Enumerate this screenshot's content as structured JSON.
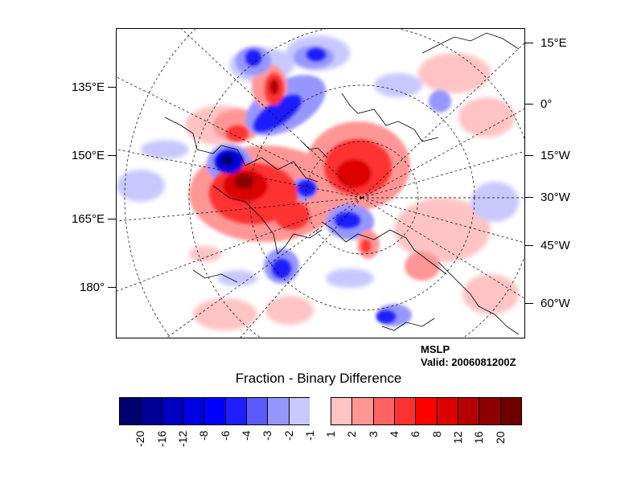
{
  "map": {
    "projection": "polar stereographic, north",
    "left_axis_labels": [
      "135°E",
      "150°E",
      "165°E",
      "180°"
    ],
    "right_axis_labels": [
      "15°E",
      "0°",
      "15°W",
      "30°W",
      "45°W",
      "60°W"
    ]
  },
  "annotations": {
    "field": "MSLP",
    "valid": "Valid: 2006081200Z"
  },
  "colorbar": {
    "title": "Fraction - Binary Difference",
    "levels": [
      "-20",
      "-16",
      "-12",
      "-8",
      "-6",
      "-4",
      "-3",
      "-2",
      "-1",
      "1",
      "2",
      "3",
      "4",
      "6",
      "8",
      "12",
      "16",
      "20"
    ],
    "colors": [
      "#00006e",
      "#000096",
      "#0000c3",
      "#0000e1",
      "#0000ff",
      "#1e1eff",
      "#5a5aff",
      "#9696ff",
      "#c8c8ff",
      "#ffffff",
      "#ffc3c3",
      "#ff9696",
      "#ff6464",
      "#ff3232",
      "#ff0000",
      "#dc0000",
      "#b40000",
      "#8c0000",
      "#6e0000"
    ]
  },
  "chart_data": {
    "type": "heatmap",
    "title": "Fraction - Binary Difference",
    "variable": "MSLP",
    "valid_time": "2006081200Z",
    "value_range": [
      -20,
      20
    ]
  }
}
